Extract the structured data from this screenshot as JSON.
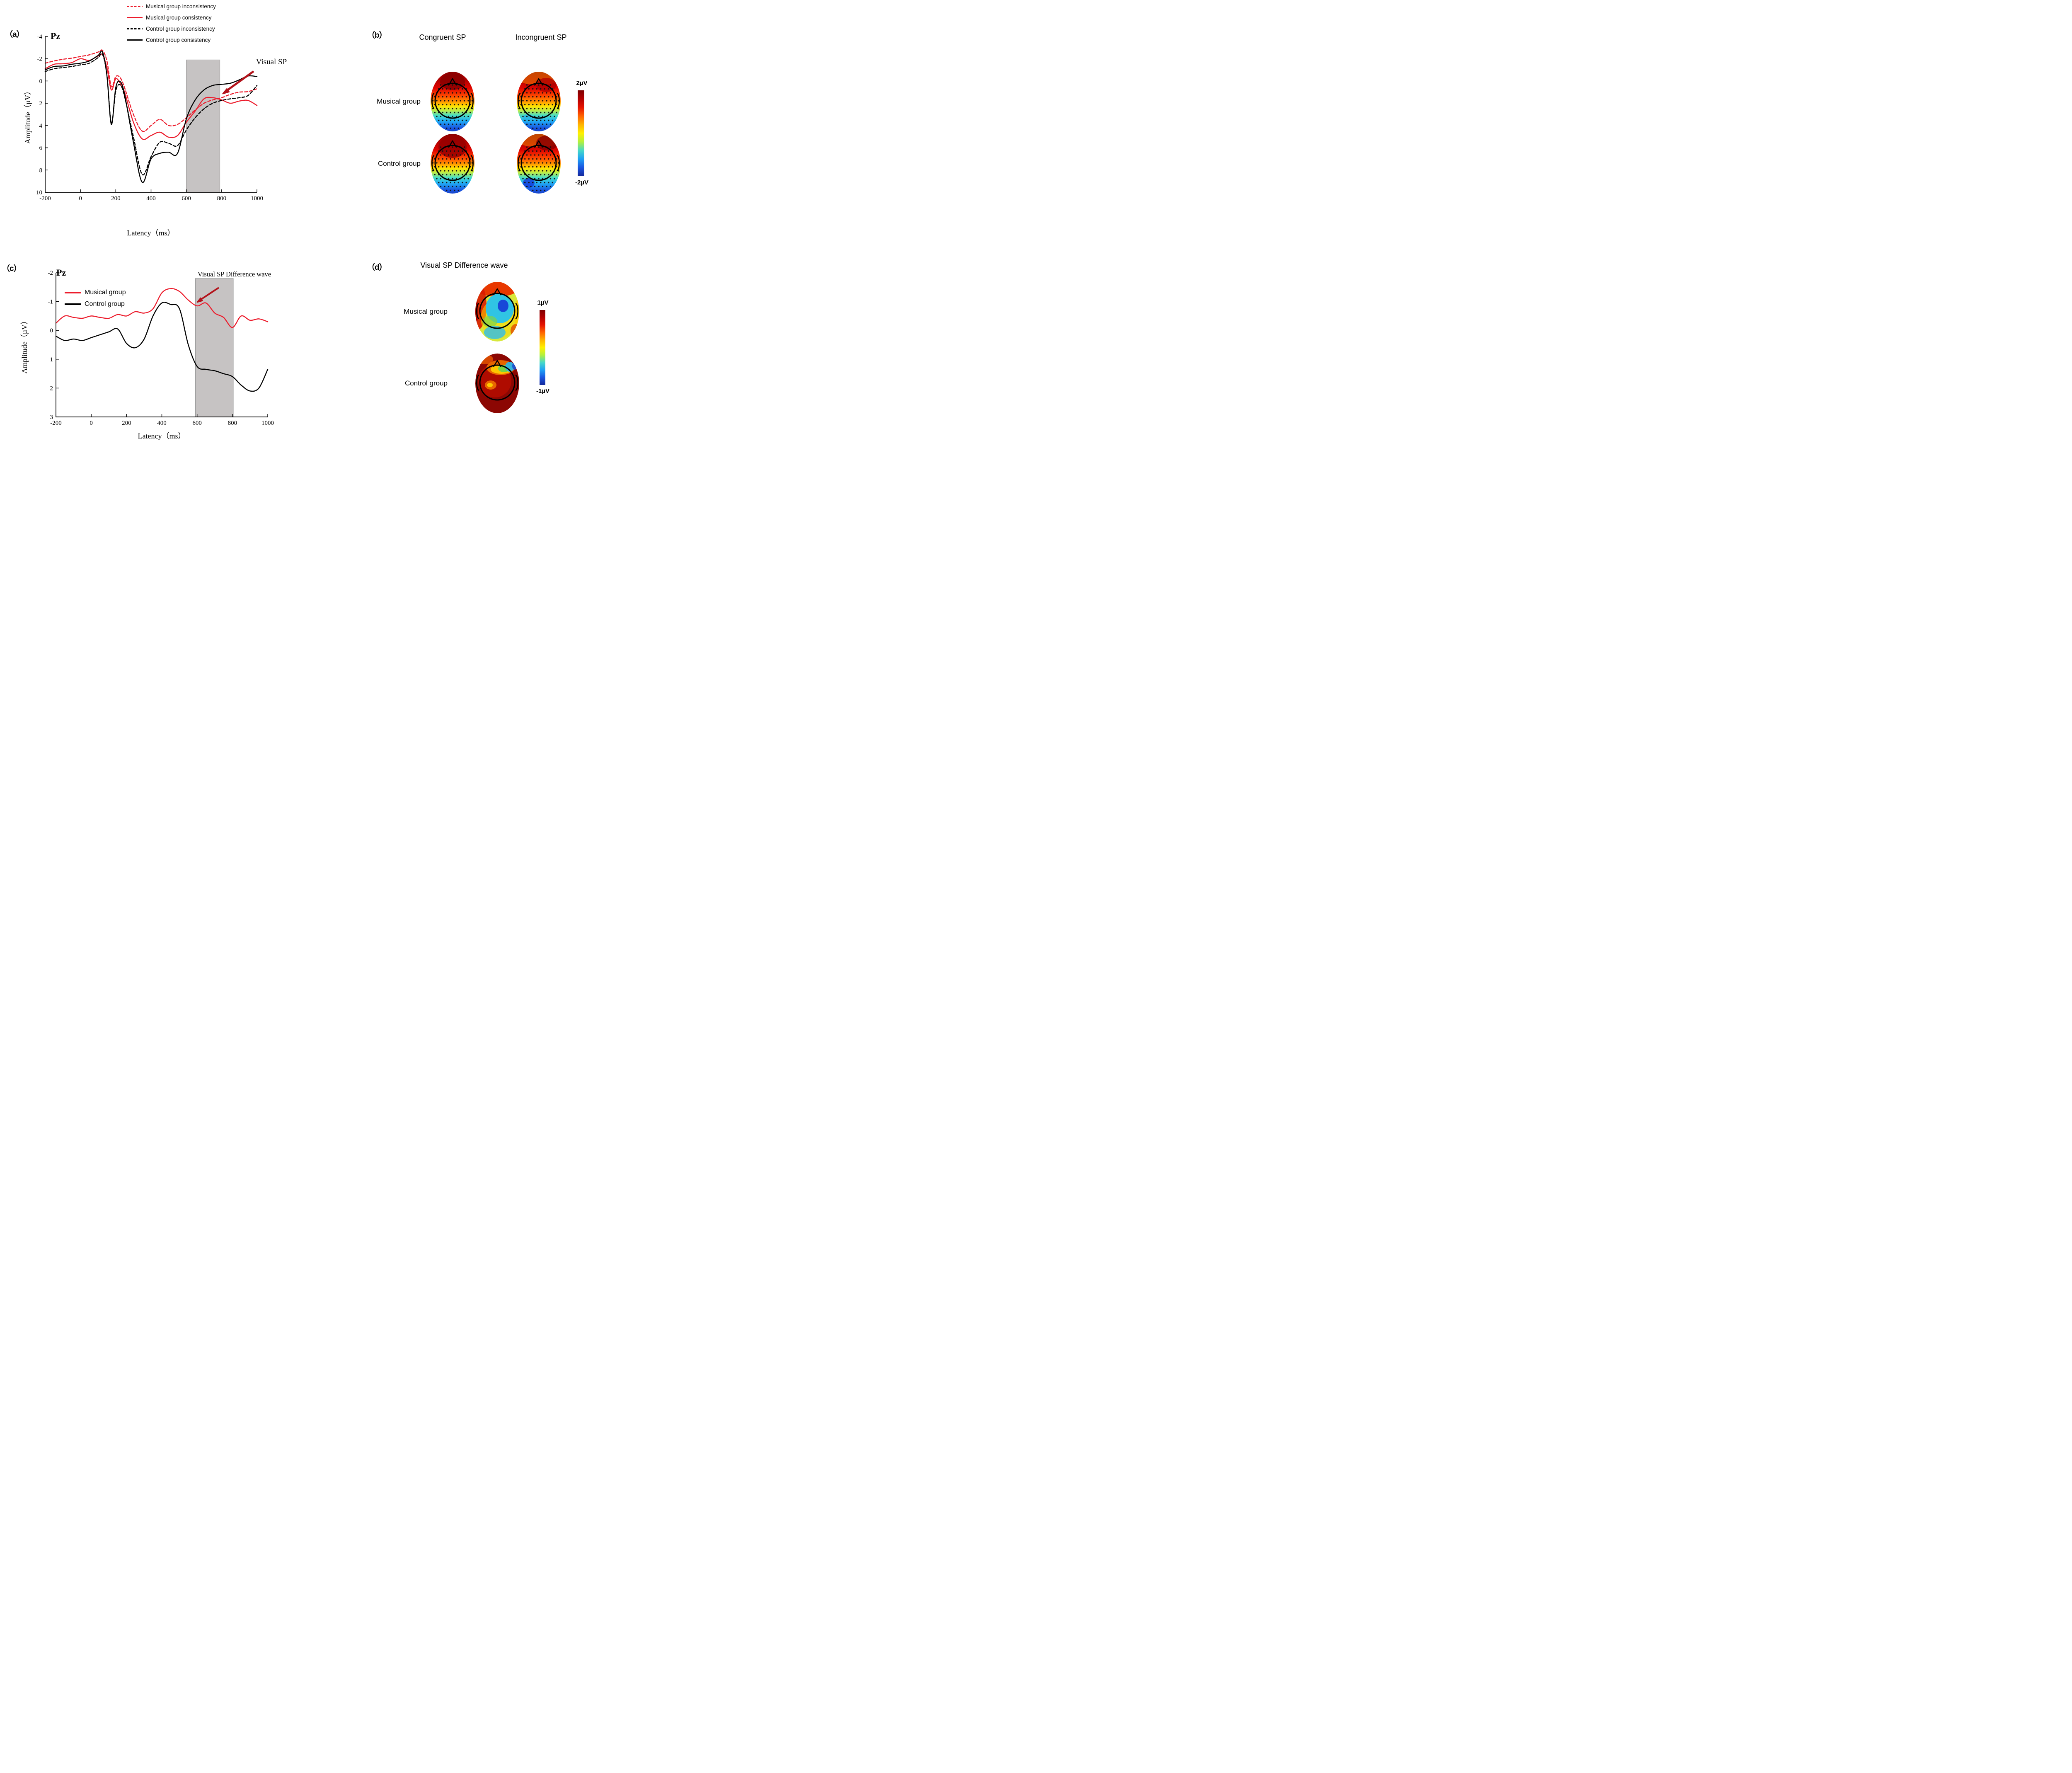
{
  "figure": {
    "panels": {
      "a": {
        "label": "（a）",
        "annotation": "Visual SP"
      },
      "b": {
        "label": "（b）"
      },
      "c": {
        "label": "（c）",
        "annotation": "Visual SP Difference wave"
      },
      "d": {
        "label": "（d）"
      }
    }
  },
  "colors": {
    "series_red": "#ec1c2c",
    "series_black": "#000000",
    "annotation_arrow": "#b3131b",
    "highlight_gray": "#c6c3c3",
    "highlight_border": "#8f8f8f",
    "jet_bar": [
      "#7f0000",
      "#b40000",
      "#e61400",
      "#ff6400",
      "#ffb400",
      "#fff000",
      "#b4f03c",
      "#46d8c8",
      "#1ea0f5",
      "#1a55e0",
      "#14289b"
    ],
    "jet_scalp": [
      [
        0,
        "#7a0100"
      ],
      [
        0.16,
        "#ad0000"
      ],
      [
        0.3,
        "#e00500"
      ],
      [
        0.42,
        "#ff4a00"
      ],
      [
        0.5,
        "#ff9400"
      ],
      [
        0.57,
        "#ffe200"
      ],
      [
        0.64,
        "#b6ec4e"
      ],
      [
        0.71,
        "#46dcc8"
      ],
      [
        0.8,
        "#1fa8f5"
      ],
      [
        0.9,
        "#1a55e0"
      ],
      [
        1,
        "#1633b2"
      ]
    ]
  },
  "chart_data": [
    {
      "type": "line",
      "panel": "a",
      "title": "Pz",
      "xlabel": "Latency（ms）",
      "ylabel": "Amplitude（µV）",
      "y_axis_inverted": true,
      "xlim": [
        -200,
        1000
      ],
      "ylim_top_to_bottom": [
        -4,
        10
      ],
      "xticks": [
        -200,
        0,
        200,
        400,
        600,
        800,
        1000
      ],
      "yticks": [
        -4,
        -2,
        0,
        2,
        4,
        6,
        8,
        10
      ],
      "highlight_region": {
        "x": [
          600,
          790
        ],
        "y_top": -1.9
      },
      "x": [
        -200,
        -150,
        -100,
        -50,
        0,
        50,
        100,
        125,
        150,
        175,
        200,
        225,
        250,
        300,
        350,
        400,
        450,
        500,
        550,
        600,
        650,
        700,
        750,
        800,
        850,
        900,
        950,
        1000
      ],
      "series": [
        {
          "name": "Musical group inconsistency",
          "color": "#ec1c2c",
          "dashed": true,
          "values": [
            -1.6,
            -1.8,
            -1.95,
            -2.05,
            -2.2,
            -2.35,
            -2.6,
            -2.75,
            -1.8,
            0.5,
            -0.4,
            -0.3,
            0.6,
            3.0,
            4.5,
            4.0,
            3.45,
            4.0,
            3.9,
            3.3,
            2.6,
            2.0,
            1.7,
            1.5,
            1.2,
            1.0,
            0.95,
            0.7
          ]
        },
        {
          "name": "Musical group consistency",
          "color": "#ec1c2c",
          "dashed": false,
          "values": [
            -1.1,
            -1.5,
            -1.55,
            -1.65,
            -2.0,
            -1.85,
            -2.25,
            -2.35,
            -1.2,
            0.8,
            -0.2,
            0.2,
            1.0,
            3.7,
            5.2,
            4.9,
            4.6,
            5.05,
            4.9,
            3.7,
            2.7,
            1.6,
            1.5,
            1.7,
            2.0,
            1.8,
            1.75,
            2.2
          ]
        },
        {
          "name": "Control group inconsistency",
          "color": "#000000",
          "dashed": true,
          "values": [
            -0.85,
            -1.1,
            -1.2,
            -1.3,
            -1.45,
            -1.6,
            -2.1,
            -2.4,
            -0.5,
            3.8,
            0.9,
            0.35,
            1.4,
            5.0,
            8.4,
            6.8,
            5.5,
            5.6,
            5.8,
            4.4,
            3.3,
            2.5,
            2.0,
            1.75,
            1.6,
            1.5,
            1.3,
            0.4
          ]
        },
        {
          "name": "Control group consistency",
          "color": "#000000",
          "dashed": false,
          "values": [
            -1.0,
            -1.3,
            -1.35,
            -1.5,
            -1.6,
            -1.8,
            -2.3,
            -2.6,
            -0.5,
            3.9,
            0.6,
            0.05,
            1.2,
            5.5,
            9.1,
            7.0,
            6.5,
            6.4,
            6.5,
            3.4,
            1.7,
            0.8,
            0.4,
            0.3,
            0.2,
            -0.1,
            -0.45,
            -0.4
          ]
        }
      ]
    },
    {
      "type": "line",
      "panel": "c",
      "title": "Pz",
      "xlabel": "Latency（ms）",
      "ylabel": "Amplitude（µV）",
      "y_axis_inverted": true,
      "xlim": [
        -200,
        1000
      ],
      "ylim_top_to_bottom": [
        -2,
        3
      ],
      "xticks": [
        -200,
        0,
        200,
        400,
        600,
        800,
        1000
      ],
      "yticks": [
        -2,
        -1,
        0,
        1,
        2,
        3
      ],
      "highlight_region": {
        "x": [
          590,
          805
        ],
        "y_top": -1.8
      },
      "x": [
        -200,
        -150,
        -100,
        -50,
        0,
        50,
        100,
        150,
        200,
        250,
        300,
        350,
        400,
        450,
        500,
        550,
        600,
        650,
        700,
        750,
        800,
        850,
        900,
        950,
        1000
      ],
      "series": [
        {
          "name": "Musical group",
          "color": "#ec1c2c",
          "dashed": false,
          "values": [
            -0.25,
            -0.5,
            -0.45,
            -0.42,
            -0.5,
            -0.45,
            -0.42,
            -0.55,
            -0.5,
            -0.65,
            -0.6,
            -0.75,
            -1.3,
            -1.45,
            -1.35,
            -1.05,
            -0.85,
            -0.95,
            -0.6,
            -0.45,
            -0.1,
            -0.5,
            -0.35,
            -0.4,
            -0.3
          ]
        },
        {
          "name": "Control group",
          "color": "#000000",
          "dashed": false,
          "values": [
            0.2,
            0.35,
            0.3,
            0.35,
            0.25,
            0.15,
            0.05,
            -0.05,
            0.45,
            0.6,
            0.3,
            -0.5,
            -0.95,
            -0.9,
            -0.75,
            0.5,
            1.25,
            1.35,
            1.4,
            1.5,
            1.6,
            1.9,
            2.1,
            2.0,
            1.35
          ]
        }
      ]
    },
    {
      "type": "topomap-grid",
      "panel": "b",
      "columns": [
        "Congruent SP",
        "Incongruent SP"
      ],
      "rows": [
        "Musical group",
        "Control group"
      ],
      "colorbar": {
        "max": "2µV",
        "min": "-2µV"
      },
      "description": "Jet-colormap scalp maps, 600-800 ms visual SP: anterior positivity (dark red) grading to posterior negativity (cyan/blue) in all four conditions"
    },
    {
      "type": "topomap-grid",
      "panel": "d",
      "title": "Visual SP Difference wave",
      "rows": [
        "Musical group",
        "Control group"
      ],
      "colorbar": {
        "max": "1µV",
        "min": "-1µV"
      },
      "description": "Difference-wave maps: Musical group shows centro-parietal negativity (cyan/blue) with red left/anterior rim; Control group shows widespread positivity (dark red) with small cyan focus right-frontal"
    }
  ]
}
